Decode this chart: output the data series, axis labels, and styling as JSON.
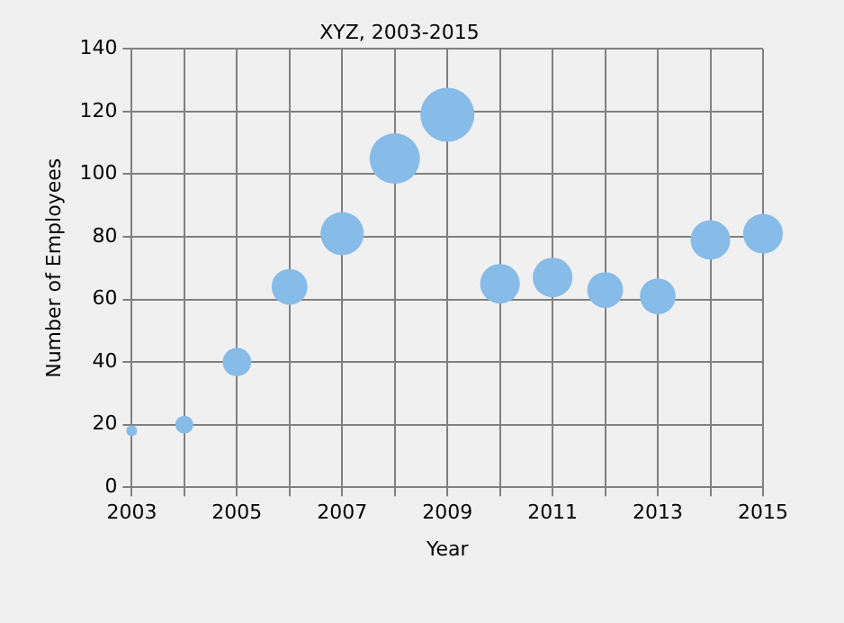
{
  "chart_data": {
    "type": "bubble",
    "title": "XYZ, 2003-2015",
    "xlabel": "Year",
    "ylabel": "Number of Employees",
    "x": [
      2003,
      2004,
      2005,
      2006,
      2007,
      2008,
      2009,
      2010,
      2011,
      2012,
      2013,
      2014,
      2015
    ],
    "values": [
      18,
      20,
      40,
      64,
      81,
      105,
      119,
      65,
      67,
      63,
      61,
      79,
      81
    ],
    "sizes": [
      0.04,
      0.11,
      0.28,
      0.44,
      0.64,
      0.87,
      1,
      0.54,
      0.54,
      0.44,
      0.44,
      0.54,
      0.54
    ],
    "color": "#87bbe8",
    "xlim": [
      2003,
      2015
    ],
    "xticks": [
      2003,
      {
        "value": 2004,
        "label": null
      },
      2005,
      {
        "value": 2006,
        "label": null
      },
      2007,
      {
        "value": 2008,
        "label": null
      },
      2009,
      {
        "value": 2010,
        "label": null
      },
      2011,
      {
        "value": 2012,
        "label": null
      },
      2013,
      {
        "value": 2014,
        "label": null
      },
      2015
    ],
    "ylim": [
      0,
      140
    ],
    "yticks": [
      0,
      20,
      40,
      60,
      80,
      100,
      120,
      140
    ],
    "grid": true,
    "legend": false
  }
}
